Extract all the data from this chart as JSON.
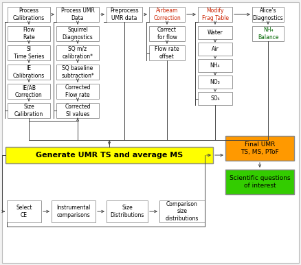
{
  "bg_color": "#f2f2f2",
  "box_facecolor": "#ffffff",
  "box_edgecolor": "#999999",
  "arrow_color": "#444444",
  "red_text_color": "#cc2200",
  "green_text_color": "#006600",
  "yellow_box_color": "#ffff00",
  "orange_box_color": "#ff9900",
  "lime_box_color": "#33cc00",
  "col1_header": "Process\nCalibrations",
  "col1_boxes": [
    "Flow\nRate",
    "SI\nTime Series",
    "IE\nCalibrations",
    "IE/AB\nCorrection",
    "Size\nCalibration"
  ],
  "col2_header": "Process UMR\nData",
  "col2_boxes": [
    "Squirrel\nDiagnostics",
    "SQ m/z\ncalibration*",
    "SQ baseline\nsubtraction*",
    "Corrected\nFlow rate",
    "Corrected\nSI values"
  ],
  "col3_header": "Preprocess\nUMR data",
  "col4_header": "Airbeam\nCorrection",
  "col4_boxes": [
    "Correct\nfor flow",
    "Flow rate\noffset"
  ],
  "col5_header": "Modify\nFrag Table",
  "col5_boxes": [
    "Water",
    "Air",
    "NH₄",
    "NO₃",
    "SO₄"
  ],
  "col6_header": "Alice's\nDiagnostics",
  "col6_boxes": [
    "NH₄\nBalance"
  ],
  "gen_box": "Generate UMR TS and average MS",
  "final_box": "Final UMR\nTS, MS, PToF",
  "sci_box": "Scientific questions\nof interest",
  "bottom_boxes": [
    "Select\nCE",
    "Instrumental\ncomparisons",
    "Size\nDistributions",
    "Comparison\nsize\ndistributions"
  ]
}
